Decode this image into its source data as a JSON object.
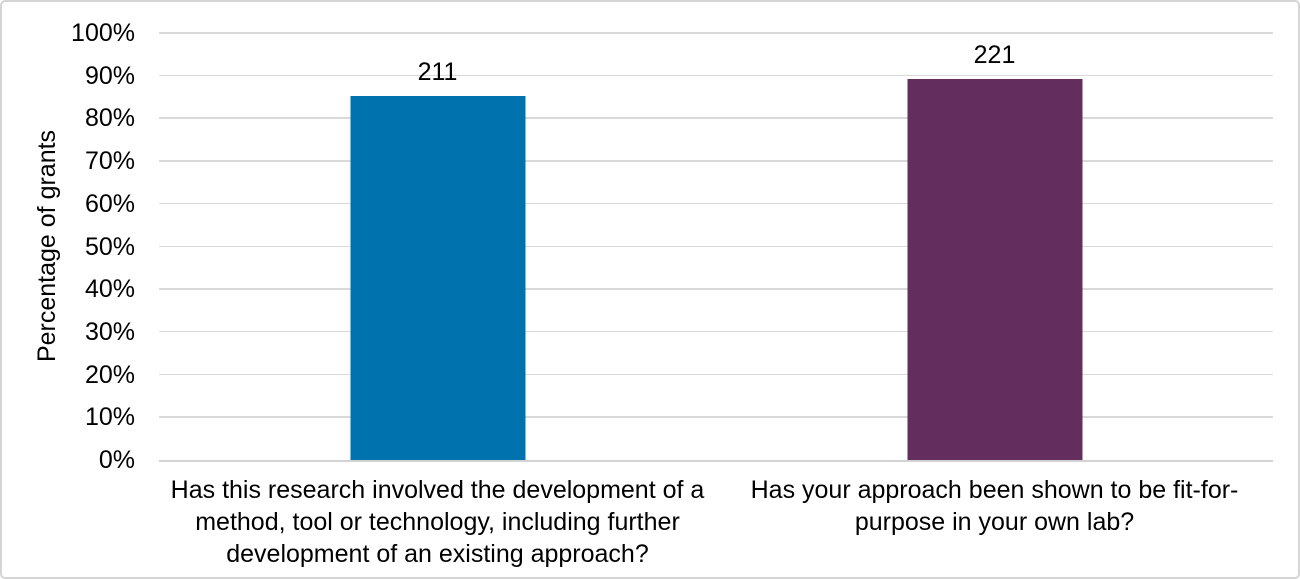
{
  "chart_data": {
    "type": "bar",
    "title": "",
    "ylabel": "Percentage of grants",
    "xlabel": "",
    "ylim": [
      0,
      100
    ],
    "ytick_step": 10,
    "yticks": [
      "0%",
      "10%",
      "20%",
      "30%",
      "40%",
      "50%",
      "60%",
      "70%",
      "80%",
      "90%",
      "100%"
    ],
    "grid": "horizontal gridlines, light gray",
    "legend_position": "none",
    "categories": [
      "Has this research involved the development of a method, tool or technology, including further development of an existing approach?",
      "Has your approach been shown to be fit-for-purpose in your own lab?"
    ],
    "bars": [
      {
        "category": "Has this research involved the development of a method, tool or technology, including further development of an existing approach?",
        "value_pct": 85.2,
        "data_label": "211",
        "color": "#0073AE"
      },
      {
        "category": "Has your approach been shown to be fit-for-purpose in your own lab?",
        "value_pct": 89.2,
        "data_label": "221",
        "color": "#632E5E"
      }
    ],
    "colors": {
      "gridline": "#D9D9D9",
      "axis_line": "#D2D2D2",
      "text": "#000000",
      "background": "#FFFFFF"
    }
  }
}
